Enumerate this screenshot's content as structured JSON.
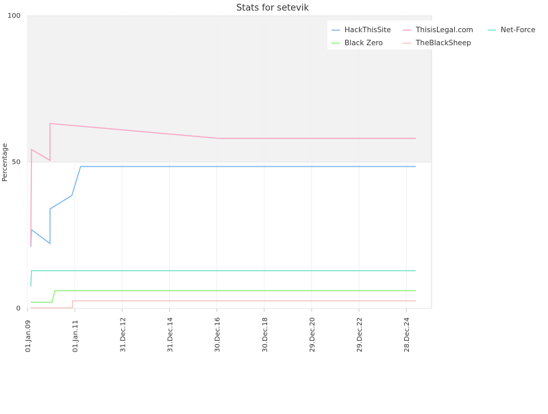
{
  "chart_data": {
    "type": "line",
    "title": "Stats for setevik",
    "y_label": "Percentage",
    "xlim": [
      "2009-01-01",
      "2026-01-20"
    ],
    "xticks": [
      {
        "value": "2009-01-01",
        "label": "01.Jan.09"
      },
      {
        "value": "2011-01-01",
        "label": "01.Jan.11"
      },
      {
        "value": "2012-12-31",
        "label": "31.Dec.12"
      },
      {
        "value": "2014-12-31",
        "label": "31.Dec.14"
      },
      {
        "value": "2016-12-30",
        "label": "30.Dec.16"
      },
      {
        "value": "2018-12-30",
        "label": "30.Dec.18"
      },
      {
        "value": "2020-12-29",
        "label": "29.Dec.20"
      },
      {
        "value": "2022-12-29",
        "label": "29.Dec.22"
      },
      {
        "value": "2024-12-28",
        "label": "28.Dec.24"
      }
    ],
    "ylim": [
      0,
      100
    ],
    "yticks": [
      0,
      50,
      100
    ],
    "shaded_band": [
      50,
      100
    ],
    "grid": true,
    "legend_position": "top-right",
    "series": [
      {
        "name": "HackThisSite",
        "color": "#7cb5ec",
        "x": [
          "2009-02-22",
          "2009-03-05",
          "2009-12-15",
          "2009-12-16",
          "2010-11-17",
          "2011-04-01",
          "2025-05-22"
        ],
        "values": [
          21.1,
          26.9,
          22.2,
          34,
          38.6,
          48.5,
          48.5
        ]
      },
      {
        "name": "ThisisLegal.com",
        "color": "#f7a3c4",
        "x": [
          "2009-02-22",
          "2009-03-05",
          "2009-12-15",
          "2009-12-16",
          "2017-02-01",
          "2025-05-22"
        ],
        "values": [
          21.5,
          54.3,
          50.6,
          63.2,
          58.1,
          58.1
        ]
      },
      {
        "name": "Net-Force",
        "color": "#76e0cf",
        "x": [
          "2009-02-22",
          "2009-03-05",
          "2025-05-22"
        ],
        "values": [
          7.5,
          12.9,
          12.9
        ]
      },
      {
        "name": "Black Zero",
        "color": "#90ed7d",
        "x": [
          "2009-02-22",
          "2010-01-15",
          "2010-03-01",
          "2025-05-22"
        ],
        "values": [
          2.1,
          2.1,
          6.1,
          6.1
        ]
      },
      {
        "name": "TheBlackSheep",
        "color": "#f2c4c4",
        "x": [
          "2009-02-22",
          "2010-11-27",
          "2010-11-28",
          "2025-05-22"
        ],
        "values": [
          0.2,
          0.2,
          2.6,
          2.6
        ]
      }
    ]
  }
}
